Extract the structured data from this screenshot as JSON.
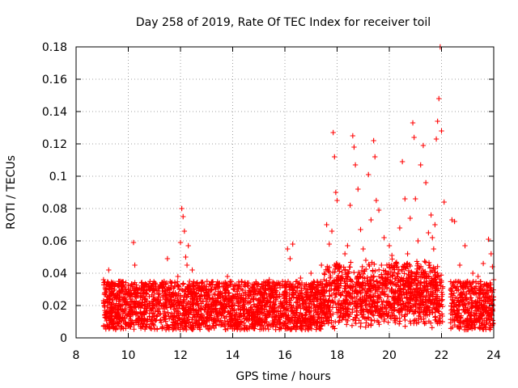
{
  "chart_data": {
    "type": "scatter",
    "title": "Day 258 of 2019, Rate Of TEC Index for receiver toil",
    "xlabel": "GPS time / hours",
    "ylabel": "ROTI / TECUs",
    "xlim": [
      8,
      24
    ],
    "ylim": [
      0,
      0.18
    ],
    "xticks": [
      8,
      10,
      12,
      14,
      16,
      18,
      20,
      22,
      24
    ],
    "xtick_labels": [
      "8",
      "10",
      "12",
      "14",
      "16",
      "18",
      "20",
      "22",
      "24"
    ],
    "yticks": [
      0,
      0.02,
      0.04,
      0.06,
      0.08,
      0.1,
      0.12,
      0.14,
      0.16,
      0.18
    ],
    "ytick_labels": [
      "0",
      "0.02",
      "0.04",
      "0.06",
      "0.08",
      "0.1",
      "0.12",
      "0.14",
      "0.16",
      "0.18"
    ],
    "grid": true,
    "marker": "plus",
    "series": [
      {
        "name": "ROTI",
        "color": "#ff0000",
        "x": [
          9.05,
          9.1,
          9.15,
          9.2,
          9.25,
          9.3,
          9.35,
          9.4,
          9.5,
          9.6,
          9.7,
          9.8,
          9.9,
          10.0,
          10.1,
          10.2,
          10.25,
          10.3,
          10.4,
          10.5,
          10.6,
          10.7,
          10.8,
          10.9,
          11.0,
          11.1,
          11.2,
          11.3,
          11.4,
          11.5,
          11.6,
          11.7,
          11.8,
          11.9,
          12.0,
          12.05,
          12.1,
          12.15,
          12.2,
          12.25,
          12.3,
          12.35,
          12.4,
          12.45,
          12.5,
          12.6,
          12.7,
          12.8,
          12.9,
          13.0,
          13.2,
          13.4,
          13.6,
          13.8,
          14.0,
          14.2,
          14.4,
          14.6,
          14.8,
          15.0,
          15.2,
          15.4,
          15.6,
          15.8,
          16.0,
          16.1,
          16.2,
          16.3,
          16.4,
          16.5,
          16.6,
          16.8,
          17.0,
          17.2,
          17.4,
          17.5,
          17.6,
          17.7,
          17.8,
          17.85,
          17.9,
          17.95,
          18.0,
          18.1,
          18.2,
          18.3,
          18.4,
          18.5,
          18.6,
          18.65,
          18.7,
          18.8,
          18.9,
          19.0,
          19.1,
          19.2,
          19.3,
          19.4,
          19.45,
          19.5,
          19.6,
          19.7,
          19.8,
          19.9,
          20.0,
          20.1,
          20.2,
          20.3,
          20.4,
          20.5,
          20.6,
          20.7,
          20.8,
          20.9,
          20.95,
          21.0,
          21.1,
          21.2,
          21.3,
          21.4,
          21.5,
          21.55,
          21.6,
          21.65,
          21.7,
          21.75,
          21.8,
          21.85,
          21.9,
          21.95,
          22.0,
          22.1,
          22.4,
          22.5,
          22.6,
          22.7,
          22.8,
          22.9,
          23.0,
          23.1,
          23.2,
          23.3,
          23.4,
          23.5,
          23.6,
          23.7,
          23.8,
          23.9,
          23.95,
          24.0
        ],
        "y": [
          0.036,
          0.014,
          0.028,
          0.019,
          0.042,
          0.024,
          0.012,
          0.033,
          0.018,
          0.026,
          0.035,
          0.015,
          0.022,
          0.03,
          0.017,
          0.059,
          0.045,
          0.025,
          0.019,
          0.034,
          0.016,
          0.027,
          0.021,
          0.032,
          0.014,
          0.024,
          0.018,
          0.029,
          0.015,
          0.049,
          0.022,
          0.013,
          0.026,
          0.038,
          0.059,
          0.08,
          0.075,
          0.066,
          0.05,
          0.045,
          0.057,
          0.035,
          0.028,
          0.042,
          0.021,
          0.024,
          0.016,
          0.019,
          0.013,
          0.011,
          0.018,
          0.022,
          0.015,
          0.038,
          0.02,
          0.026,
          0.017,
          0.032,
          0.014,
          0.029,
          0.023,
          0.036,
          0.016,
          0.027,
          0.033,
          0.055,
          0.049,
          0.058,
          0.032,
          0.024,
          0.037,
          0.028,
          0.04,
          0.031,
          0.045,
          0.036,
          0.07,
          0.058,
          0.066,
          0.127,
          0.112,
          0.09,
          0.085,
          0.045,
          0.038,
          0.052,
          0.057,
          0.082,
          0.125,
          0.118,
          0.107,
          0.092,
          0.067,
          0.055,
          0.048,
          0.101,
          0.073,
          0.122,
          0.112,
          0.085,
          0.079,
          0.045,
          0.062,
          0.04,
          0.057,
          0.051,
          0.044,
          0.038,
          0.068,
          0.109,
          0.086,
          0.052,
          0.074,
          0.133,
          0.124,
          0.086,
          0.06,
          0.107,
          0.119,
          0.096,
          0.065,
          0.045,
          0.076,
          0.062,
          0.055,
          0.07,
          0.123,
          0.134,
          0.148,
          0.18,
          0.128,
          0.084,
          0.073,
          0.072,
          0.023,
          0.045,
          0.031,
          0.057,
          0.035,
          0.027,
          0.04,
          0.022,
          0.038,
          0.033,
          0.046,
          0.025,
          0.061,
          0.052,
          0.044,
          0.036
        ]
      }
    ],
    "dense_band": {
      "description": "background cloud of points",
      "x_segments": [
        [
          9.05,
          22.05
        ],
        [
          22.35,
          24.0
        ]
      ],
      "typical_range": [
        0.005,
        0.035
      ]
    }
  }
}
